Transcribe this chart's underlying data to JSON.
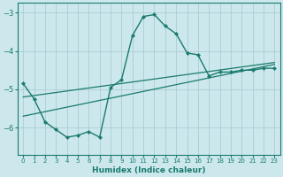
{
  "xlabel": "Humidex (Indice chaleur)",
  "bg_color": "#cce8ec",
  "line_color": "#1a7a6e",
  "grid_color": "#aacdd4",
  "xlim": [
    -0.5,
    23.5
  ],
  "ylim": [
    -6.7,
    -2.75
  ],
  "yticks": [
    -6,
    -5,
    -4,
    -3
  ],
  "xticks": [
    0,
    1,
    2,
    3,
    4,
    5,
    6,
    7,
    8,
    9,
    10,
    11,
    12,
    13,
    14,
    15,
    16,
    17,
    18,
    19,
    20,
    21,
    22,
    23
  ],
  "line1_x": [
    0,
    1,
    2,
    3,
    4,
    5,
    6,
    7,
    8,
    9,
    10,
    11,
    12,
    13,
    14,
    15,
    16,
    17,
    18,
    19,
    20,
    21,
    22,
    23
  ],
  "line1_y": [
    -4.85,
    -5.25,
    -5.85,
    -6.05,
    -6.25,
    -6.2,
    -6.1,
    -6.25,
    -4.95,
    -4.75,
    -3.6,
    -3.1,
    -3.05,
    -3.35,
    -3.55,
    -4.05,
    -4.1,
    -4.65,
    -4.55,
    -4.55,
    -4.5,
    -4.5,
    -4.45,
    -4.45
  ],
  "line2_x": [
    0,
    23
  ],
  "line2_y": [
    -5.7,
    -4.35
  ],
  "line3_x": [
    0,
    23
  ],
  "line3_y": [
    -5.2,
    -4.3
  ]
}
